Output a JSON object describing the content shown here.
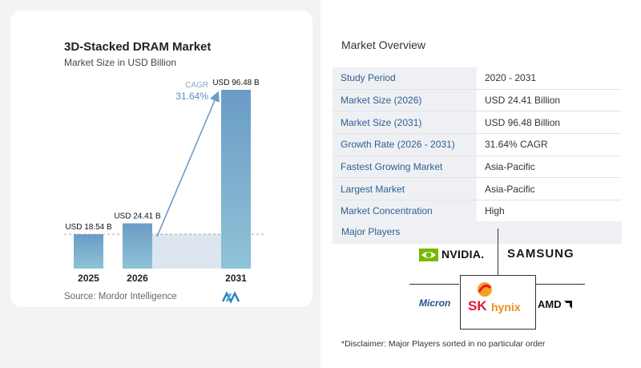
{
  "chart_data": {
    "type": "bar",
    "title": "3D-Stacked DRAM Market",
    "subtitle": "Market Size in USD Billion",
    "categories": [
      "2025",
      "2026",
      "2031"
    ],
    "values": [
      18.54,
      24.41,
      96.48
    ],
    "value_labels": [
      "USD 18.54 B",
      "USD 24.41 B",
      "USD 96.48 B"
    ],
    "cagr_label": "CAGR",
    "cagr_value": "31.64%",
    "source": "Source:  Mordor Intelligence",
    "colors": {
      "bar_top": "#6a9cc6",
      "bar_bottom": "#8fc3d6",
      "band": "#dde6ee",
      "arrow": "#6b9ac4",
      "cagr_text": "#5a8fc0"
    }
  },
  "overview": {
    "title": "Market Overview",
    "rows": [
      {
        "key": "Study Period",
        "value": "2020 - 2031"
      },
      {
        "key": "Market Size (2026)",
        "value": "USD 24.41 Billion"
      },
      {
        "key": "Market Size (2031)",
        "value": "USD 96.48 Billion"
      },
      {
        "key": "Growth Rate (2026 - 2031)",
        "value": "31.64% CAGR"
      },
      {
        "key": "Fastest Growing Market",
        "value": "Asia-Pacific"
      },
      {
        "key": "Largest Market",
        "value": "Asia-Pacific"
      },
      {
        "key": "Market Concentration",
        "value": "High"
      }
    ]
  },
  "players": {
    "label": "Major Players",
    "nvidia": "NVIDIA.",
    "samsung": "SAMSUNG",
    "micron": "Micron",
    "sk": "SK",
    "hynix": "hynix",
    "amd": "AMD"
  },
  "disclaimer": "*Disclaimer: Major Players sorted in no particular order"
}
